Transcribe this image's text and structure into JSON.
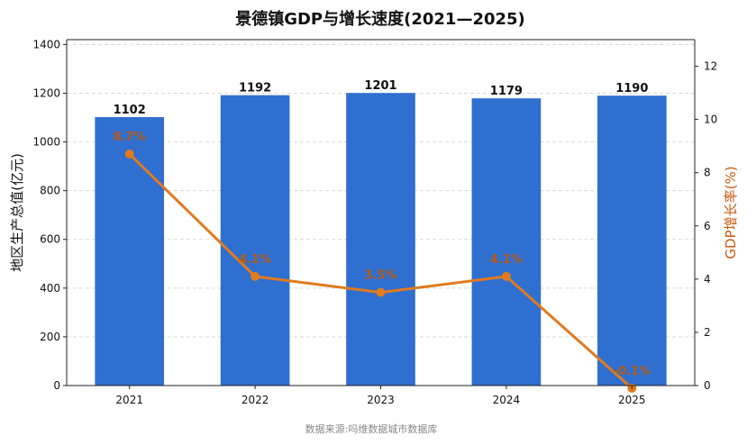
{
  "chart_data": {
    "type": "bar",
    "title": "景德镇GDP与增长速度(2021—2025)",
    "categories": [
      "2021",
      "2022",
      "2023",
      "2024",
      "2025"
    ],
    "series": [
      {
        "name": "",
        "type": "bar",
        "axis": "left",
        "values": [
          1102,
          1192,
          1201,
          1179,
          1190
        ],
        "labels": [
          "1102",
          "1192",
          "1201",
          "1179",
          "1190"
        ],
        "color": "#2f6fd0"
      },
      {
        "name": "",
        "type": "line",
        "axis": "right",
        "values": [
          8.7,
          4.1,
          3.5,
          4.1,
          -0.1
        ],
        "labels": [
          "8.7%",
          "4.1%",
          "3.5%",
          "4.1%",
          "-0.1%"
        ],
        "color": "#e07b1f"
      }
    ],
    "ylabel": "地区生产总值(亿元)",
    "ylim": [
      0,
      1420
    ],
    "yticks": [
      "0",
      "200",
      "400",
      "600",
      "800",
      "1000",
      "1200",
      "1400"
    ],
    "y2label": "GDP增长率(%)",
    "y2lim": [
      0,
      13
    ],
    "y2ticks": [
      "0",
      "2",
      "4",
      "6",
      "8",
      "10",
      "12"
    ],
    "y2label_color": "#c85a10",
    "grid": "horizontal-dashed",
    "source": "数据来源:吗维数据城市数据库"
  }
}
